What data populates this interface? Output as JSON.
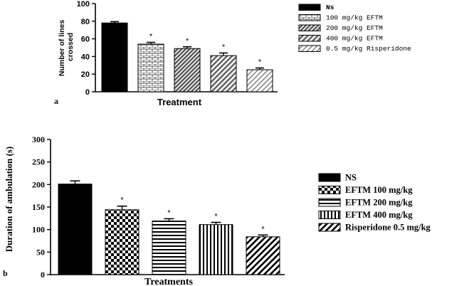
{
  "chart_data": [
    {
      "type": "bar",
      "panel_label": "a",
      "ylabel": "Number of lines crossed",
      "xlabel": "Treatment",
      "ylim": [
        0,
        100
      ],
      "yticks": [
        0,
        20,
        40,
        60,
        80,
        100
      ],
      "categories": [
        "Ns",
        "100 mg/kg EFTM",
        "200 mg/kg EFTM",
        "400 mg/kg EFTM",
        "0.5 mg/kg Risperidone"
      ],
      "values": [
        78,
        54,
        49,
        41,
        25
      ],
      "errors": [
        1.5,
        2,
        2,
        3,
        2
      ],
      "significance": [
        "",
        "*",
        "*",
        "*",
        "*"
      ],
      "legend": [
        "Ns",
        "100 mg/kg EFTM",
        "200 mg/kg EFTM",
        "400 mg/kg EFTM",
        "0.5 mg/kg Risperidone"
      ],
      "legend_position": "right",
      "grid": false
    },
    {
      "type": "bar",
      "panel_label": "b",
      "ylabel": "Duration of ambulation (s)",
      "xlabel": "Treatments",
      "ylim": [
        0,
        300
      ],
      "yticks": [
        0,
        50,
        100,
        150,
        200,
        250,
        300
      ],
      "categories": [
        "NS",
        "EFTM 100 mg/kg",
        "EFTM 200 mg/kg",
        "EFTM 400 mg/kg",
        "Risperidone 0.5 mg/kg"
      ],
      "values": [
        201,
        144,
        119,
        111,
        84
      ],
      "errors": [
        7,
        8,
        5,
        5,
        4
      ],
      "significance": [
        "",
        "*",
        "*",
        "*",
        "*"
      ],
      "legend": [
        "NS",
        "EFTM 100 mg/kg",
        "EFTM 200 mg/kg",
        "EFTM 400 mg/kg",
        "Risperidone 0.5 mg/kg"
      ],
      "legend_position": "right",
      "grid": false
    }
  ]
}
